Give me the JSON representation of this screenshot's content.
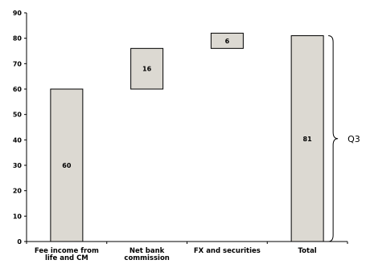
{
  "chart_data": {
    "type": "bar",
    "subtype": "waterfall",
    "categories": [
      [
        "Fee income from",
        "life and CM"
      ],
      [
        "Net bank",
        "commission"
      ],
      [
        "FX and securities"
      ],
      [
        "Total"
      ]
    ],
    "bars": [
      {
        "base": 0,
        "value": 60,
        "label": "60"
      },
      {
        "base": 60,
        "value": 16,
        "label": "16"
      },
      {
        "base": 76,
        "value": 6,
        "label": "6"
      },
      {
        "base": 0,
        "value": 81,
        "label": "81"
      }
    ],
    "ylim": [
      0,
      90
    ],
    "yticks": [
      0,
      10,
      20,
      30,
      40,
      50,
      60,
      70,
      80,
      90
    ],
    "grid": false,
    "bar_color": "#dcd9d2",
    "annotation": {
      "text": "Q3",
      "spans_bar": 3
    }
  }
}
